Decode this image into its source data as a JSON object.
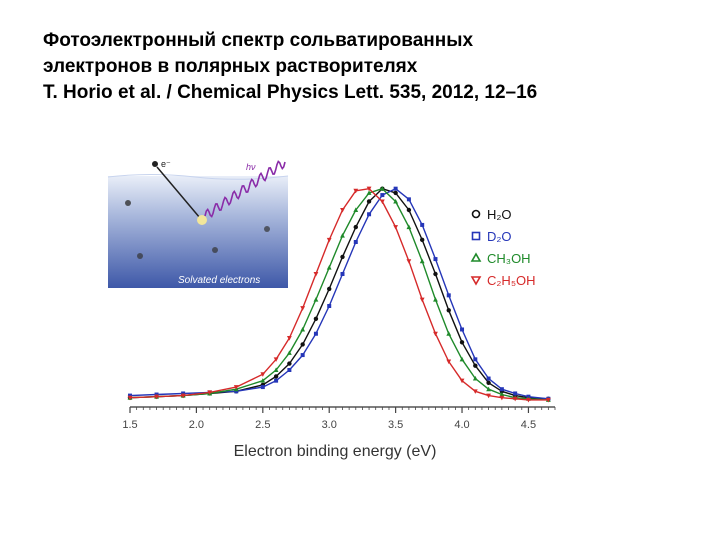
{
  "slide": {
    "title_lines": [
      "Фотоэлектронный спектр сольватированных",
      "электронов в полярных растворителях",
      "T. Horio et al. / Chemical Physics Lett. 535, 2012, 12–16"
    ]
  },
  "inset": {
    "electron_label": "e⁻",
    "photon_label": "hν",
    "caption": "Solvated electrons",
    "water_color": "#7f95c4"
  },
  "chart_data": {
    "type": "line",
    "xlabel": "Electron binding energy (eV)",
    "ylabel": "",
    "xlim": [
      1.5,
      4.7
    ],
    "ylim": [
      0,
      1.05
    ],
    "xticks": [
      "1.5",
      "2.0",
      "2.5",
      "3.0",
      "3.5",
      "4.0",
      "4.5"
    ],
    "grid": false,
    "legend_position": "right",
    "series": [
      {
        "name": "H₂O",
        "color": "#111111",
        "marker": "circle",
        "x": [
          1.5,
          1.7,
          1.9,
          2.1,
          2.3,
          2.5,
          2.6,
          2.7,
          2.8,
          2.9,
          3.0,
          3.1,
          3.2,
          3.3,
          3.4,
          3.5,
          3.6,
          3.7,
          3.8,
          3.9,
          4.0,
          4.1,
          4.2,
          4.3,
          4.4,
          4.5,
          4.65
        ],
        "y": [
          0.02,
          0.025,
          0.03,
          0.04,
          0.05,
          0.08,
          0.12,
          0.18,
          0.27,
          0.39,
          0.53,
          0.68,
          0.82,
          0.94,
          1.0,
          0.98,
          0.9,
          0.76,
          0.6,
          0.43,
          0.28,
          0.17,
          0.09,
          0.05,
          0.03,
          0.02,
          0.015
        ]
      },
      {
        "name": "D₂O",
        "color": "#2536b8",
        "marker": "square",
        "x": [
          1.5,
          1.7,
          1.9,
          2.1,
          2.3,
          2.5,
          2.6,
          2.7,
          2.8,
          2.9,
          3.0,
          3.1,
          3.2,
          3.3,
          3.4,
          3.5,
          3.6,
          3.7,
          3.8,
          3.9,
          4.0,
          4.1,
          4.2,
          4.3,
          4.4,
          4.5,
          4.65
        ],
        "y": [
          0.03,
          0.035,
          0.04,
          0.045,
          0.05,
          0.07,
          0.1,
          0.15,
          0.22,
          0.32,
          0.45,
          0.6,
          0.75,
          0.88,
          0.97,
          1.0,
          0.95,
          0.83,
          0.67,
          0.5,
          0.34,
          0.2,
          0.11,
          0.06,
          0.04,
          0.025,
          0.015
        ]
      },
      {
        "name": "CH₃OH",
        "color": "#1f8a2a",
        "marker": "triangle-up",
        "x": [
          1.5,
          1.7,
          1.9,
          2.1,
          2.3,
          2.5,
          2.6,
          2.7,
          2.8,
          2.9,
          3.0,
          3.1,
          3.2,
          3.3,
          3.4,
          3.5,
          3.6,
          3.7,
          3.8,
          3.9,
          4.0,
          4.1,
          4.2,
          4.3,
          4.4,
          4.5,
          4.65
        ],
        "y": [
          0.02,
          0.025,
          0.03,
          0.04,
          0.06,
          0.1,
          0.15,
          0.23,
          0.34,
          0.48,
          0.63,
          0.78,
          0.9,
          0.98,
          1.0,
          0.94,
          0.82,
          0.66,
          0.48,
          0.32,
          0.2,
          0.11,
          0.06,
          0.035,
          0.02,
          0.015,
          0.01
        ]
      },
      {
        "name": "C₂H₅OH",
        "color": "#d62a2a",
        "marker": "triangle-down",
        "x": [
          1.5,
          1.7,
          1.9,
          2.1,
          2.3,
          2.5,
          2.6,
          2.7,
          2.8,
          2.9,
          3.0,
          3.1,
          3.2,
          3.3,
          3.4,
          3.5,
          3.6,
          3.7,
          3.8,
          3.9,
          4.0,
          4.1,
          4.2,
          4.3,
          4.4,
          4.5,
          4.65
        ],
        "y": [
          0.02,
          0.025,
          0.03,
          0.045,
          0.07,
          0.13,
          0.2,
          0.3,
          0.44,
          0.6,
          0.76,
          0.9,
          0.99,
          1.0,
          0.94,
          0.82,
          0.66,
          0.48,
          0.32,
          0.19,
          0.1,
          0.05,
          0.03,
          0.02,
          0.015,
          0.01,
          0.01
        ]
      }
    ]
  }
}
